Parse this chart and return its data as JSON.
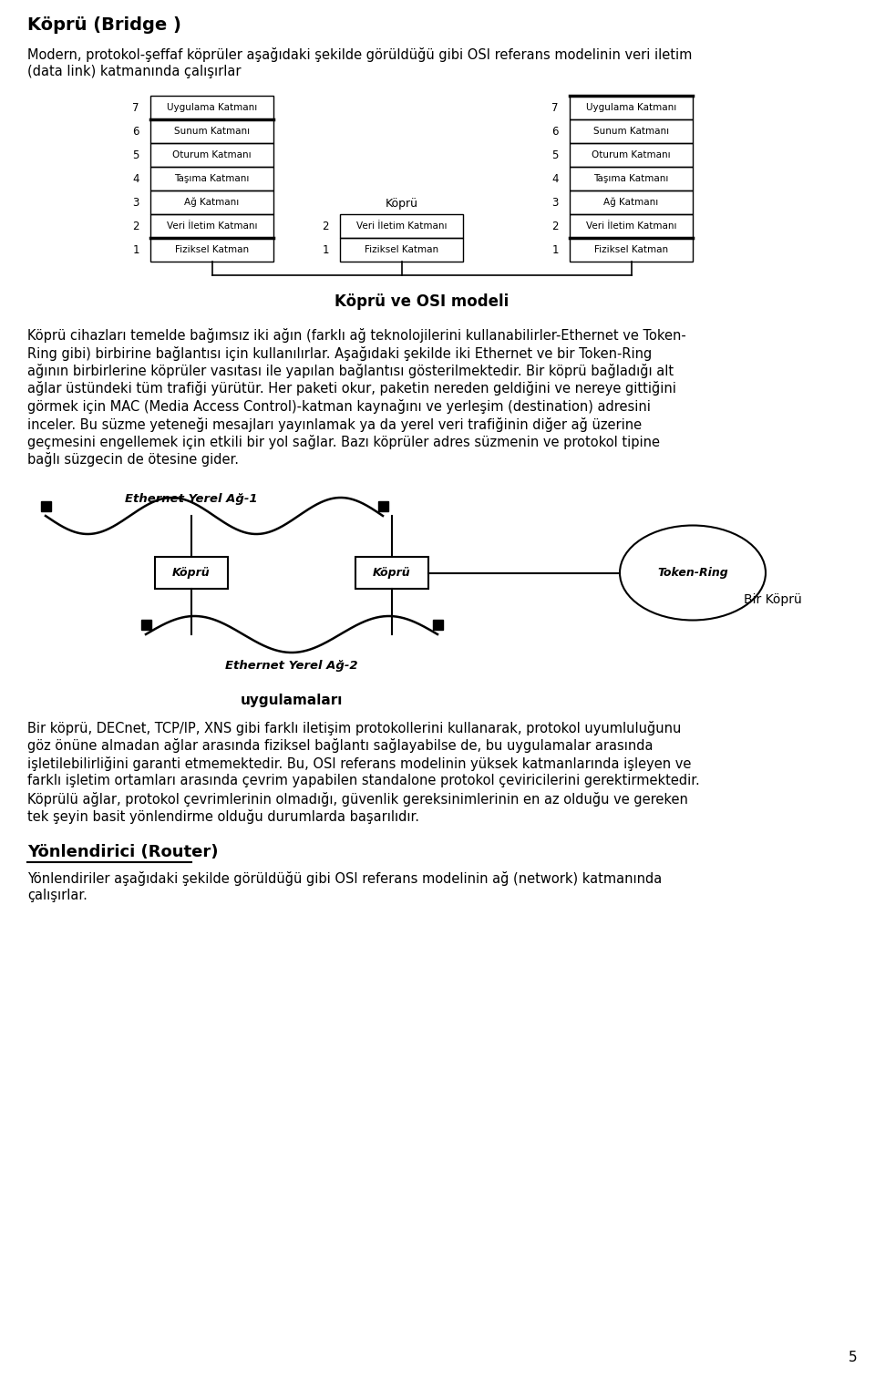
{
  "title": "Köprü (Bridge )",
  "bg_color": "#ffffff",
  "text_color": "#000000",
  "page_number": "5",
  "para1_line1": "Modern, protokol-şeffaf köprüler aşağıdaki şekilde görüldüğü gibi OSI referans modelinin veri iletim",
  "para1_line2": "(data link) katmanında çalışırlar",
  "osi_caption": "Köprü ve OSI modeli",
  "left_layers": [
    "Uygulama Katmanı",
    "Sunum Katmanı",
    "Oturum Katmanı",
    "Taşıma Katmanı",
    "Ağ Katmanı",
    "Veri İletim Katmanı",
    "Fiziksel Katman"
  ],
  "bridge_layers": [
    "Veri İletim Katmanı",
    "Fiziksel Katman"
  ],
  "right_layers": [
    "Uygulama Katmanı",
    "Sunum Katmanı",
    "Oturum Katmanı",
    "Taşıma Katmanı",
    "Ağ Katmanı",
    "Veri İletim Katmanı",
    "Fiziksel Katman"
  ],
  "bridge_label": "Köprü",
  "para2_lines": [
    "Köprü cihazları temelde bağımsız iki ağın (farklı ağ teknolojilerini kullanabilirler-Ethernet ve Token-",
    "Ring gibi) birbirine bağlantısı için kullanılırlar. Aşağıdaki şekilde iki Ethernet ve bir Token-Ring",
    "ağının birbirlerine köprüler vasıtası ile yapılan bağlantısı gösterilmektedir. Bir köprü bağladığı alt",
    "ağlar üstündeki tüm trafiği yürütür. Her paketi okur, paketin nereden geldiğini ve nereye gittiğini",
    "görmek için MAC (Media Access Control)-katman kaynağını ve yerleşim (destination) adresini",
    "inceler. Bu süzme yeteneği mesajları yayınlamak ya da yerel veri trafiğinin diğer ağ üzerine",
    "geçmesini engellemek için etkili bir yol sağlar. Bazı köprüler adres süzmenin ve protokol tipine",
    "bağlı süzgecin de ötesine gider."
  ],
  "net_label1": "Ethernet Yerel Ağ-1",
  "net_label2": "Ethernet Yerel Ağ-2",
  "net_label3": "Token-Ring",
  "bridge1_label": "Köprü",
  "bridge2_label": "Köprü",
  "diagram_caption1": "uygulamaları",
  "diagram_caption2": "Bir Köprü",
  "para3_lines": [
    "Bir köprü, DECnet, TCP/IP, XNS gibi farklı iletişim protokollerini kullanarak, protokol uyumluluğunu",
    "göz önüne almadan ağlar arasında fiziksel bağlantı sağlayabilse de, bu uygulamalar arasında",
    "işletilebilirliğini garanti etmemektedir. Bu, OSI referans modelinin yüksek katmanlarında işleyen ve",
    "farklı işletim ortamları arasında çevrim yapabilen standalone protokol çeviricilerini gerektirmektedir.",
    "Köprülü ağlar, protokol çevrimlerinin olmadığı, güvenlik gereksinimlerinin en az olduğu ve gereken",
    "tek şeyin basit yönlendirme olduğu durumlarda başarılıdır."
  ],
  "section2_title": "Yönlendirici (Router)",
  "section2_para_line1": "Yönlendiriler aşağıdaki şekilde görüldüğü gibi OSI referans modelinin ağ (network) katmanında",
  "section2_para_line2": "çalışırlar."
}
